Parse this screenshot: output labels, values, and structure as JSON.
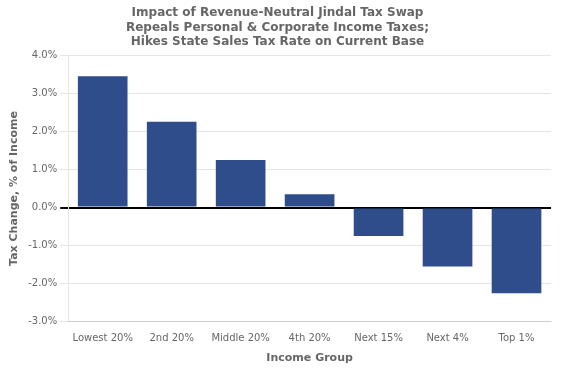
{
  "chart_data": {
    "type": "bar",
    "title": "Impact of Revenue-Neutral Jindal Tax Swap\nRepeals Personal & Corporate Income Taxes;\nHikes State Sales Tax Rate on Current Base",
    "x_label": "Income Group",
    "y_label": "Tax Change, % of Income",
    "categories": [
      "Lowest 20%",
      "2nd 20%",
      "Middle 20%",
      "4th 20%",
      "Next 15%",
      "Next 4%",
      "Top 1%"
    ],
    "values": [
      3.45,
      2.25,
      1.25,
      0.35,
      -0.75,
      -1.55,
      -2.25
    ],
    "color": "#2E4D8A",
    "ylim": [
      -3.0,
      4.0
    ],
    "yticks": [
      {
        "value": -3.0,
        "label": "-3.0%"
      },
      {
        "value": -2.0,
        "label": "-2.0%"
      },
      {
        "value": -1.0,
        "label": "-1.0%"
      },
      {
        "value": 0.0,
        "label": "0.0%"
      },
      {
        "value": 1.0,
        "label": "1.0%"
      },
      {
        "value": 2.0,
        "label": "2.0%"
      },
      {
        "value": 3.0,
        "label": "3.0%"
      },
      {
        "value": 4.0,
        "label": "4.0%"
      }
    ],
    "grid": true
  }
}
